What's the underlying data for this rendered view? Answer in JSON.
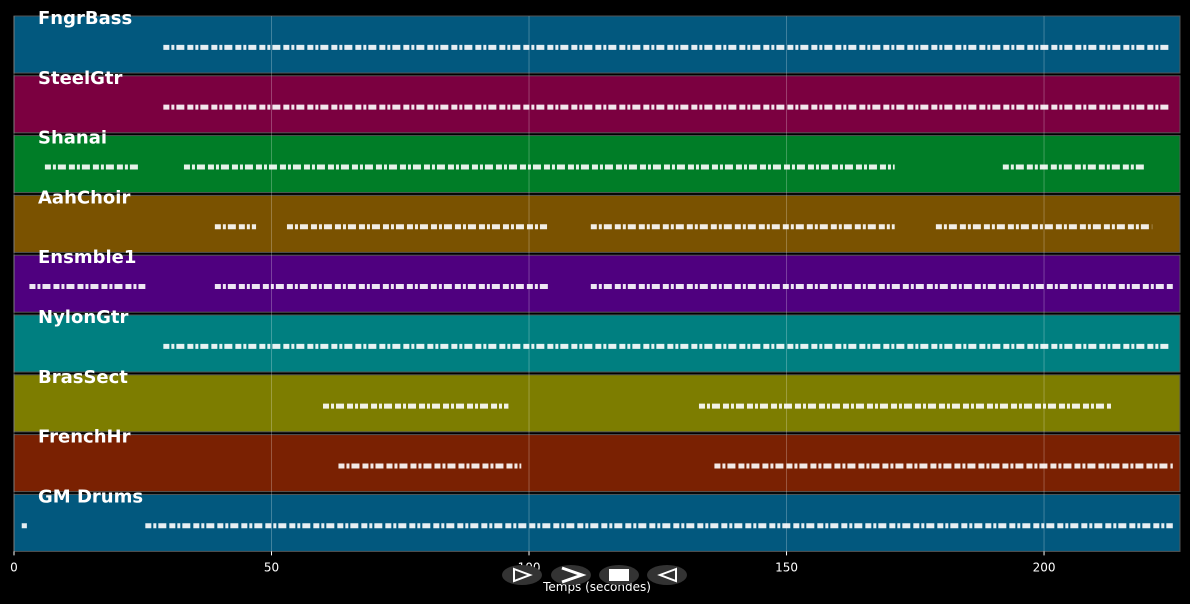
{
  "chart_data": {
    "type": "pianoroll",
    "x_label": "Temps (secondes)",
    "xlim": [
      0,
      226.4
    ],
    "xticks": [
      0,
      50,
      100,
      150,
      200
    ],
    "grid": true,
    "tracks": [
      {
        "name": "FngrBass",
        "color": "#02587e",
        "segments": [
          [
            29,
            224.5
          ]
        ]
      },
      {
        "name": "SteelGtr",
        "color": "#7b0040",
        "segments": [
          [
            29,
            224.5
          ]
        ]
      },
      {
        "name": "Shanai",
        "color": "#007d27",
        "segments": [
          [
            6,
            24.5
          ],
          [
            33,
            171
          ],
          [
            192,
            219.5
          ]
        ]
      },
      {
        "name": "AahChoir",
        "color": "#7a5200",
        "segments": [
          [
            39,
            47
          ],
          [
            53,
            103.5
          ],
          [
            112,
            171
          ],
          [
            179,
            221
          ]
        ]
      },
      {
        "name": "Ensmble1",
        "color": "#4f007f",
        "segments": [
          [
            3,
            25.5
          ],
          [
            39,
            104
          ],
          [
            112,
            225
          ]
        ]
      },
      {
        "name": "NylonGtr",
        "color": "#007f80",
        "segments": [
          [
            29,
            224.5
          ]
        ]
      },
      {
        "name": "BrasSect",
        "color": "#7d7d00",
        "segments": [
          [
            60,
            96
          ],
          [
            133,
            213
          ]
        ]
      },
      {
        "name": "FrenchHr",
        "color": "#7a2102",
        "segments": [
          [
            63,
            98.5
          ],
          [
            136,
            225
          ]
        ]
      },
      {
        "name": "GM Drums",
        "color": "#02587e",
        "segments": [
          [
            1.5,
            2.5
          ],
          [
            25.5,
            225
          ]
        ]
      }
    ]
  }
}
